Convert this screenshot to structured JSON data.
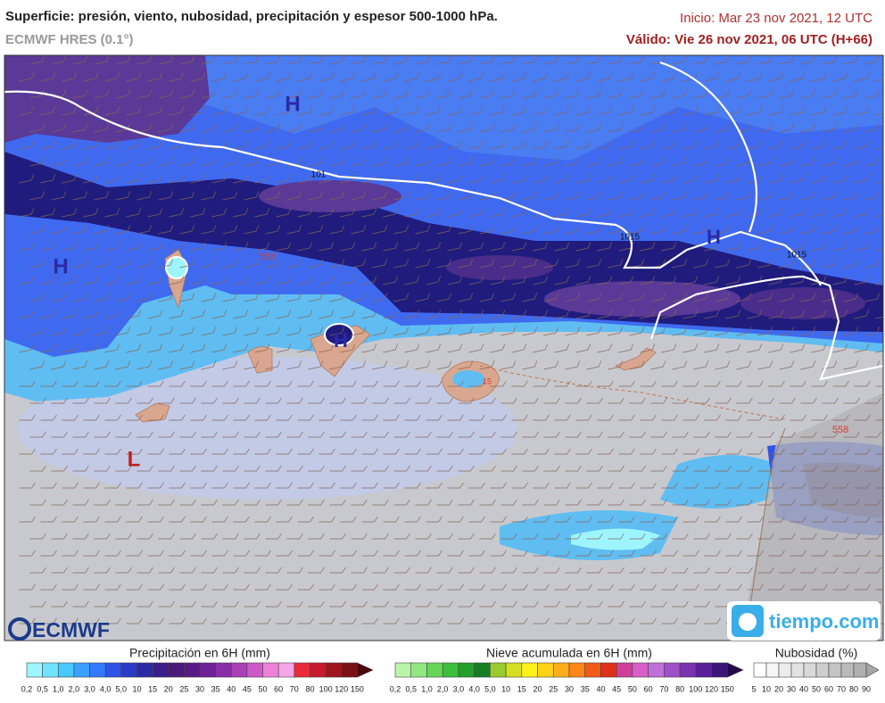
{
  "header": {
    "title": "Superficie: presión, viento, nubosidad, precipitación y espesor 500-1000 hPa.",
    "model": "ECMWF HRES (0.1°)",
    "init": "Inicio: Mar 23 nov 2021, 12 UTC",
    "valid": "Válido: Vie 26 nov 2021, 06 UTC (H+66)"
  },
  "map": {
    "labels": [
      {
        "text": "H",
        "color": "#2a2aa6"
      },
      {
        "text": "H",
        "color": "#2a2aa6"
      },
      {
        "text": "H",
        "color": "#2a2aa6"
      },
      {
        "text": "H",
        "color": "#2a2aa6"
      },
      {
        "text": "L",
        "color": "#c0201c"
      },
      {
        "text": "101",
        "color": "#111"
      },
      {
        "text": "1015",
        "color": "#111"
      },
      {
        "text": "1015",
        "color": "#111"
      },
      {
        "text": "558",
        "color": "#d04030"
      },
      {
        "text": "558",
        "color": "#d04030"
      },
      {
        "text": "15",
        "color": "#d04030"
      }
    ],
    "logos": [
      "ECMWF",
      "tiempo.com"
    ]
  },
  "legends": [
    {
      "title": "Precipitación en 6H (mm)",
      "ticks": [
        "0,2",
        "0,5",
        "1,0",
        "2,0",
        "3,0",
        "4,0",
        "5,0",
        "10",
        "15",
        "20",
        "25",
        "30",
        "35",
        "40",
        "45",
        "50",
        "60",
        "70",
        "80",
        "100",
        "120",
        "150"
      ],
      "colors": [
        "#9ff5ff",
        "#6fe3ff",
        "#48c8ff",
        "#3aa0ff",
        "#3379ff",
        "#2f53e6",
        "#2a3bc7",
        "#2a2aa6",
        "#3a1e8a",
        "#4a1a7a",
        "#5a1a86",
        "#6e2096",
        "#8a2ea6",
        "#aa40b6",
        "#cc5ac6",
        "#ef80d8",
        "#f5a6e6",
        "#e82a3a",
        "#c81a2a",
        "#a01420",
        "#7a1016",
        "#4a080c"
      ]
    },
    {
      "title": "Nieve acumulada en 6H (mm)",
      "ticks": [
        "0,2",
        "0,5",
        "1,0",
        "2,0",
        "3,0",
        "4,0",
        "5,0",
        "10",
        "15",
        "20",
        "25",
        "30",
        "35",
        "40",
        "45",
        "50",
        "60",
        "70",
        "80",
        "100",
        "120",
        "150"
      ],
      "colors": [
        "#b8f5a8",
        "#90e880",
        "#66d65a",
        "#3cbf3a",
        "#22a02a",
        "#167e22",
        "#9acc30",
        "#d6e020",
        "#fff21a",
        "#ffd21a",
        "#ffae1a",
        "#ff861a",
        "#f25a1a",
        "#e0301a",
        "#d0409a",
        "#d860c8",
        "#c070d8",
        "#a050c8",
        "#7a32b0",
        "#5a1e98",
        "#3c1478",
        "#24084a"
      ]
    },
    {
      "title": "Nubosidad (%)",
      "ticks": [
        "5",
        "10",
        "20",
        "30",
        "40",
        "50",
        "60",
        "70",
        "80",
        "90"
      ],
      "colors": [
        "#ffffff",
        "#f6f6f6",
        "#ececec",
        "#e2e2e2",
        "#d8d8d8",
        "#cecece",
        "#c4c4c4",
        "#bababa",
        "#b0b0b0",
        "#a6a6a6"
      ]
    }
  ]
}
